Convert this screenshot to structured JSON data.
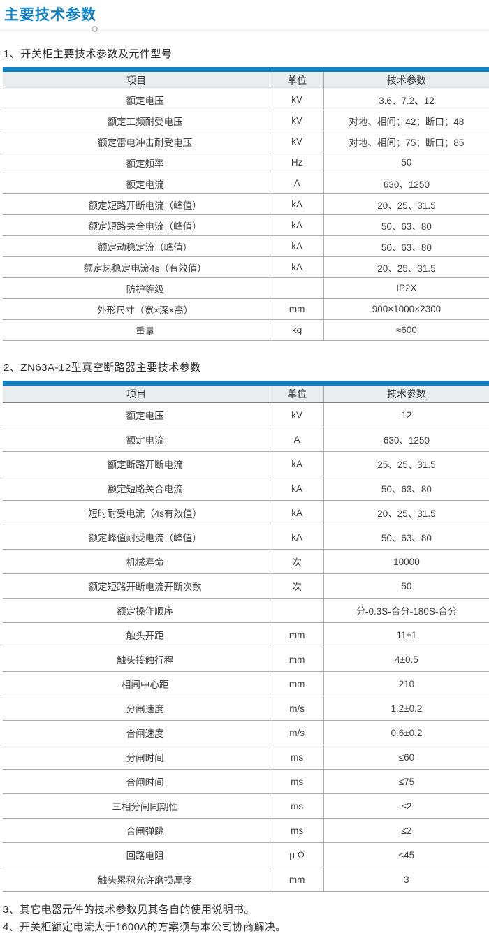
{
  "document": {
    "title": "主要技术参数"
  },
  "colors": {
    "accent": "#1581c1",
    "table_header_bg": "#e9edf0",
    "row_line": "#acacac"
  },
  "sections": [
    {
      "heading": "1、开关柜主要技术参数及元件型号",
      "columns": [
        "项目",
        "单位",
        "技术参数"
      ],
      "rows": [
        {
          "item": "额定电压",
          "unit": "kV",
          "value": "3.6、7.2、12"
        },
        {
          "item": "额定工频耐受电压",
          "unit": "kV",
          "value": "对地、相间；42；断口；48"
        },
        {
          "item": "额定雷电冲击耐受电压",
          "unit": "kV",
          "value": "对地、相间；75；断口；85"
        },
        {
          "item": "额定频率",
          "unit": "Hz",
          "value": "50"
        },
        {
          "item": "额定电流",
          "unit": "A",
          "value": "630、1250"
        },
        {
          "item": "额定短路开断电流（峰值）",
          "unit": "kA",
          "value": "20、25、31.5"
        },
        {
          "item": "额定短路关合电流（峰值）",
          "unit": "kA",
          "value": "50、63、80"
        },
        {
          "item": "额定动稳定流（峰值）",
          "unit": "kA",
          "value": "50、63、80"
        },
        {
          "item": "额定热稳定电流4s（有效值）",
          "unit": "kA",
          "value": "20、25、31.5"
        },
        {
          "item": "防护等级",
          "unit": "",
          "value": "IP2X"
        },
        {
          "item": "外形尺寸（宽×深×高）",
          "unit": "mm",
          "value": "900×1000×2300"
        },
        {
          "item": "重量",
          "unit": "kg",
          "value": "≈600"
        }
      ]
    },
    {
      "heading": "2、ZN63A-12型真空断路器主要技术参数",
      "columns": [
        "项目",
        "单位",
        "技术参数"
      ],
      "rows": [
        {
          "item": "额定电压",
          "unit": "kV",
          "value": "12"
        },
        {
          "item": "额定电流",
          "unit": "A",
          "value": "630、1250"
        },
        {
          "item": "额定断路开断电流",
          "unit": "kA",
          "value": "25、25、31.5"
        },
        {
          "item": "额定短路关合电流",
          "unit": "kA",
          "value": "50、63、80"
        },
        {
          "item": "短时耐受电流（4s有效值）",
          "unit": "kA",
          "value": "20、25、31.5"
        },
        {
          "item": "额定峰值耐受电流（峰值）",
          "unit": "kA",
          "value": "50、63、80"
        },
        {
          "item": "机械寿命",
          "unit": "次",
          "value": "10000"
        },
        {
          "item": "额定短路开断电流开断次数",
          "unit": "次",
          "value": "50"
        },
        {
          "item": "额定操作顺序",
          "unit": "",
          "value": "分-0.3S-合分-180S-合分"
        },
        {
          "item": "触头开距",
          "unit": "mm",
          "value": "11±1"
        },
        {
          "item": "触头接触行程",
          "unit": "mm",
          "value": "4±0.5"
        },
        {
          "item": "相间中心距",
          "unit": "mm",
          "value": "210"
        },
        {
          "item": "分闸速度",
          "unit": "m/s",
          "value": "1.2±0.2"
        },
        {
          "item": "合闸速度",
          "unit": "m/s",
          "value": "0.6±0.2"
        },
        {
          "item": "分闸时间",
          "unit": "ms",
          "value": "≤60"
        },
        {
          "item": "合闸时间",
          "unit": "ms",
          "value": "≤75"
        },
        {
          "item": "三相分闸同期性",
          "unit": "ms",
          "value": "≤2"
        },
        {
          "item": "合闸弹跳",
          "unit": "ms",
          "value": "≤2"
        },
        {
          "item": "回路电阻",
          "unit": "μ Ω",
          "value": "≤45"
        },
        {
          "item": "触头累积允许磨损厚度",
          "unit": "mm",
          "value": "3"
        }
      ]
    }
  ],
  "notes": [
    "3、其它电器元件的技术参数见其各自的使用说明书。",
    "4、开关柜额定电流大于1600A的方案须与本公司协商解决。"
  ]
}
